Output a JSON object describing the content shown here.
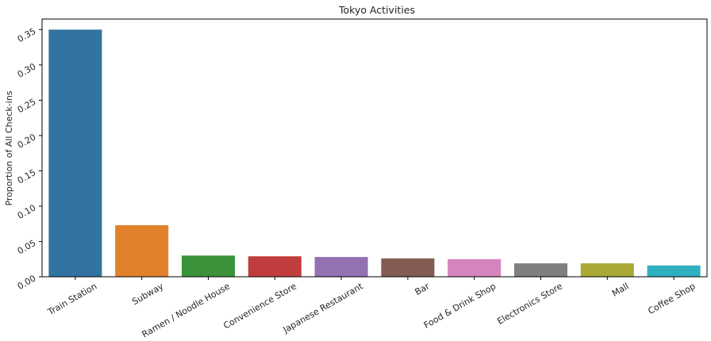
{
  "chart_data": {
    "type": "bar",
    "title": "Tokyo Activities",
    "xlabel": "",
    "ylabel": "Proportion of All Check-ins",
    "categories": [
      "Train Station",
      "Subway",
      "Ramen /  Noodle House",
      "Convenience Store",
      "Japanese Restaurant",
      "Bar",
      "Food & Drink Shop",
      "Electronics Store",
      "Mall",
      "Coffee Shop"
    ],
    "values": [
      0.35,
      0.073,
      0.03,
      0.029,
      0.028,
      0.026,
      0.025,
      0.019,
      0.019,
      0.016
    ],
    "colors": [
      "#3274a1",
      "#e1812c",
      "#3a923a",
      "#c03d3e",
      "#9372b2",
      "#845b53",
      "#d684bd",
      "#7f7f7f",
      "#a9aa35",
      "#2eb0bf"
    ],
    "yticks": [
      "0.00",
      "0.05",
      "0.10",
      "0.15",
      "0.20",
      "0.25",
      "0.30",
      "0.35"
    ],
    "ylim": [
      0,
      0.365
    ],
    "grid": false,
    "legend": "none"
  }
}
